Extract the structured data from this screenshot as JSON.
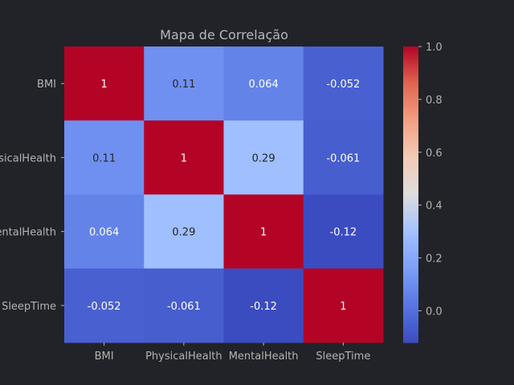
{
  "chart_data": {
    "type": "heatmap",
    "title": "Mapa de Correlação",
    "x_labels": [
      "BMI",
      "PhysicalHealth",
      "MentalHealth",
      "SleepTime"
    ],
    "y_labels": [
      "BMI",
      "PhysicalHealth",
      "MentalHealth",
      "SleepTime"
    ],
    "values": [
      [
        1,
        0.11,
        0.064,
        -0.052
      ],
      [
        0.11,
        1,
        0.29,
        -0.061
      ],
      [
        0.064,
        0.29,
        1,
        -0.12
      ],
      [
        -0.052,
        -0.061,
        -0.12,
        1
      ]
    ],
    "annotations": [
      [
        "1",
        "0.11",
        "0.064",
        "-0.052"
      ],
      [
        "0.11",
        "1",
        "0.29",
        "-0.061"
      ],
      [
        "0.064",
        "0.29",
        "1",
        "-0.12"
      ],
      [
        "-0.052",
        "-0.061",
        "-0.12",
        "1"
      ]
    ],
    "colormap": "coolwarm",
    "colorbar": {
      "vmin": -0.12,
      "vmax": 1.0,
      "ticks": [
        0.0,
        0.2,
        0.4,
        0.6,
        0.8,
        1.0
      ],
      "tick_labels": [
        "0.0",
        "0.2",
        "0.4",
        "0.6",
        "0.8",
        "1.0"
      ]
    },
    "colors": {
      "background": "#212328",
      "text": "#b3b3b3",
      "title": "#b8b8b8"
    }
  }
}
